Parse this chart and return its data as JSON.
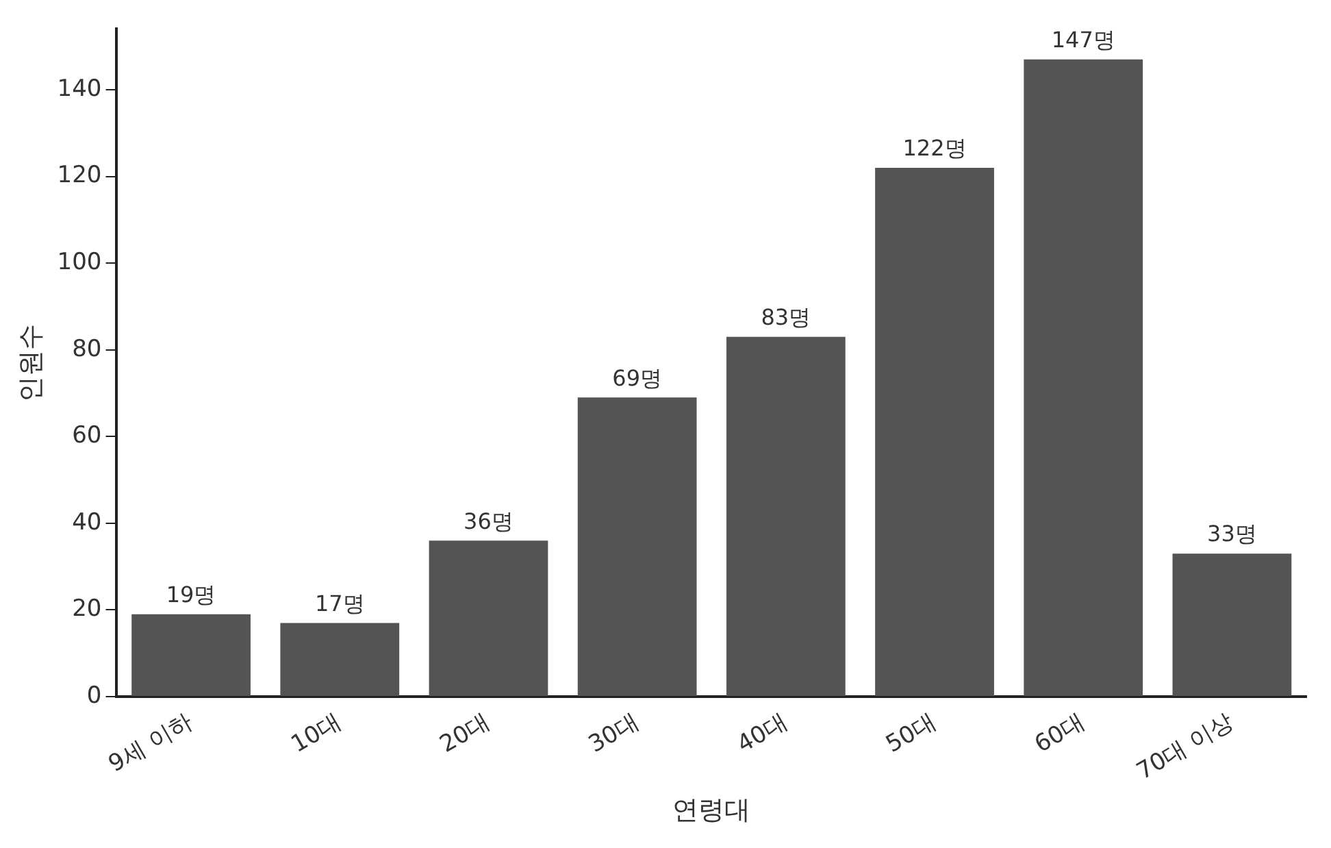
{
  "chart_data": {
    "type": "bar",
    "xlabel": "연령대",
    "ylabel": "인원수",
    "categories": [
      "9세 이하",
      "10대",
      "20대",
      "30대",
      "40대",
      "50대",
      "60대",
      "70대 이상"
    ],
    "values": [
      19,
      17,
      36,
      69,
      83,
      122,
      147,
      33
    ],
    "value_labels": [
      "19명",
      "17명",
      "36명",
      "69명",
      "83명",
      "122명",
      "147명",
      "33명"
    ],
    "color": "#545454",
    "ylim": [
      0,
      154
    ],
    "yticks": [
      0,
      20,
      40,
      60,
      80,
      100,
      120,
      140
    ],
    "grid": false,
    "legend": false
  }
}
